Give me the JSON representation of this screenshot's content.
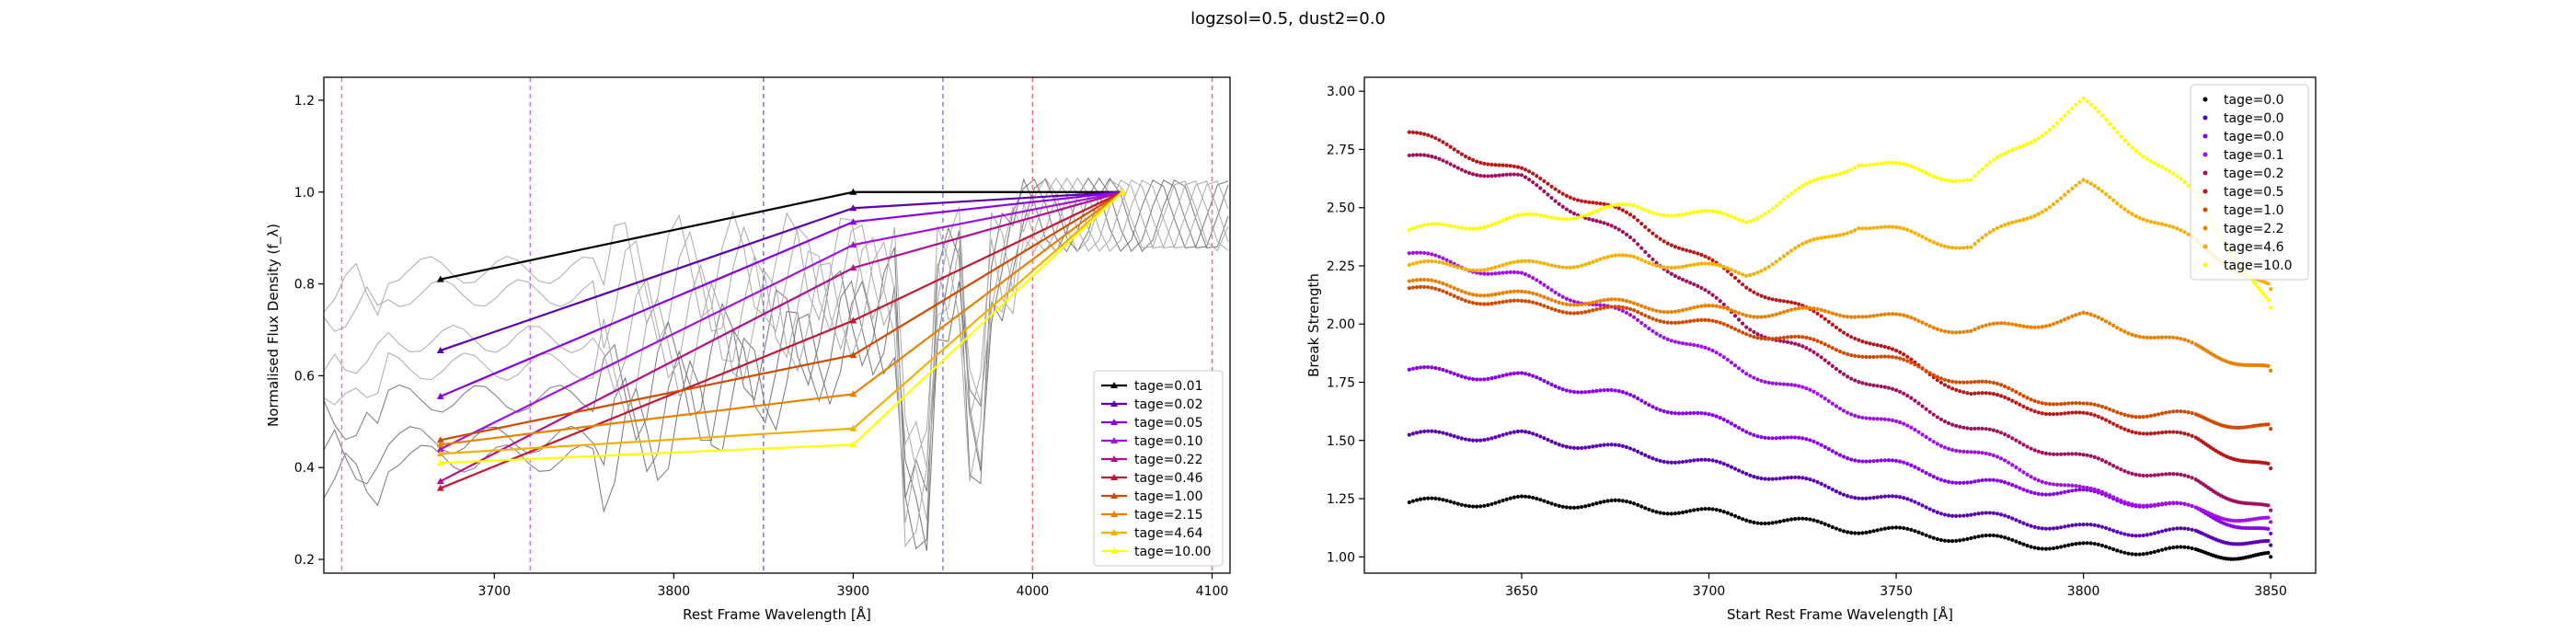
{
  "suptitle": "logzsol=0.5, dust2=0.0",
  "chart_data": [
    {
      "type": "line",
      "xlabel": "Rest Frame Wavelength [Å]",
      "ylabel": "Normalised Flux Density (f_λ)",
      "xlim": [
        3605,
        4110
      ],
      "ylim": [
        0.17,
        1.25
      ],
      "xticks": [
        3700,
        3800,
        3900,
        4000,
        4100
      ],
      "yticks": [
        0.2,
        0.4,
        0.6,
        0.8,
        1.0,
        1.2
      ],
      "legend": "lower-right",
      "vlines": [
        {
          "x": 3615,
          "color": "#e07ad0"
        },
        {
          "x": 3720,
          "color": "#c879e6"
        },
        {
          "x": 3850,
          "color": "#6b74e8"
        },
        {
          "x": 3950,
          "color": "#7d86e8"
        },
        {
          "x": 4000,
          "color": "#f07070"
        },
        {
          "x": 4100,
          "color": "#f07070"
        }
      ],
      "series": [
        {
          "name": "tage=0.01",
          "color": "#000000",
          "x": [
            3670,
            3900,
            4050
          ],
          "y": [
            0.81,
            1.0,
            1.0
          ]
        },
        {
          "name": "tage=0.02",
          "color": "#5a00b0",
          "x": [
            3670,
            3900,
            4050
          ],
          "y": [
            0.655,
            0.965,
            1.0
          ]
        },
        {
          "name": "tage=0.05",
          "color": "#8a00e6",
          "x": [
            3670,
            3900,
            4050
          ],
          "y": [
            0.555,
            0.935,
            1.0
          ]
        },
        {
          "name": "tage=0.10",
          "color": "#a010e0",
          "x": [
            3670,
            3900,
            4050
          ],
          "y": [
            0.44,
            0.885,
            1.0
          ]
        },
        {
          "name": "tage=0.22",
          "color": "#b01090",
          "x": [
            3670,
            3900,
            4050
          ],
          "y": [
            0.37,
            0.835,
            1.0
          ]
        },
        {
          "name": "tage=0.46",
          "color": "#c01830",
          "x": [
            3670,
            3900,
            4050
          ],
          "y": [
            0.355,
            0.72,
            1.0
          ]
        },
        {
          "name": "tage=1.00",
          "color": "#d04a00",
          "x": [
            3670,
            3900,
            4050
          ],
          "y": [
            0.46,
            0.645,
            1.0
          ]
        },
        {
          "name": "tage=2.15",
          "color": "#e88000",
          "x": [
            3670,
            3900,
            4050
          ],
          "y": [
            0.45,
            0.56,
            1.0
          ]
        },
        {
          "name": "tage=4.64",
          "color": "#f4b000",
          "x": [
            3670,
            3900,
            4050
          ],
          "y": [
            0.43,
            0.485,
            1.0
          ]
        },
        {
          "name": "tage=10.00",
          "color": "#ffff00",
          "x": [
            3670,
            3900,
            4050
          ],
          "y": [
            0.41,
            0.45,
            1.0
          ]
        }
      ]
    },
    {
      "type": "scatter",
      "xlabel": "Start Rest Frame Wavelength [Å]",
      "ylabel": "Break Strength",
      "xlim": [
        3608,
        3862
      ],
      "ylim": [
        0.93,
        3.06
      ],
      "xticks": [
        3650,
        3700,
        3750,
        3800,
        3850
      ],
      "yticks": [
        1.0,
        1.25,
        1.5,
        1.75,
        2.0,
        2.25,
        2.5,
        2.75,
        3.0
      ],
      "legend": "top-right",
      "series": [
        {
          "name": "tage=0.0",
          "color": "#000000",
          "x": [
            3620,
            3650,
            3680,
            3710,
            3740,
            3770,
            3800,
            3830,
            3850
          ],
          "y": [
            1.23,
            1.24,
            1.22,
            1.17,
            1.12,
            1.08,
            1.04,
            1.02,
            1.0
          ]
        },
        {
          "name": "tage=0.0",
          "color": "#5a00b0",
          "x": [
            3620,
            3650,
            3680,
            3710,
            3740,
            3770,
            3800,
            3830,
            3850
          ],
          "y": [
            1.52,
            1.52,
            1.45,
            1.37,
            1.27,
            1.18,
            1.12,
            1.1,
            1.05
          ]
        },
        {
          "name": "tage=0.0",
          "color": "#8a00e6",
          "x": [
            3620,
            3650,
            3680,
            3710,
            3740,
            3770,
            3800,
            3830,
            3850
          ],
          "y": [
            1.8,
            1.77,
            1.68,
            1.55,
            1.43,
            1.32,
            1.27,
            1.2,
            1.1
          ]
        },
        {
          "name": "tage=0.1",
          "color": "#a010e0",
          "x": [
            3620,
            3650,
            3680,
            3710,
            3740,
            3770,
            3800,
            3830,
            3850
          ],
          "y": [
            2.3,
            2.2,
            2.02,
            1.8,
            1.62,
            1.45,
            1.28,
            1.2,
            1.15
          ]
        },
        {
          "name": "tage=0.2",
          "color": "#a01060",
          "x": [
            3620,
            3650,
            3680,
            3710,
            3740,
            3770,
            3800,
            3830,
            3850
          ],
          "y": [
            2.72,
            2.62,
            2.35,
            2.0,
            1.77,
            1.55,
            1.42,
            1.32,
            1.2
          ]
        },
        {
          "name": "tage=0.5",
          "color": "#b81818",
          "x": [
            3620,
            3650,
            3680,
            3710,
            3740,
            3770,
            3800,
            3830,
            3850
          ],
          "y": [
            2.82,
            2.65,
            2.45,
            2.17,
            1.95,
            1.7,
            1.6,
            1.5,
            1.38
          ]
        },
        {
          "name": "tage=1.0",
          "color": "#d04a00",
          "x": [
            3620,
            3650,
            3680,
            3710,
            3740,
            3770,
            3800,
            3830,
            3850
          ],
          "y": [
            2.15,
            2.08,
            2.05,
            1.97,
            1.88,
            1.75,
            1.64,
            1.6,
            1.55
          ]
        },
        {
          "name": "tage=2.2",
          "color": "#e88000",
          "x": [
            3620,
            3650,
            3680,
            3710,
            3740,
            3770,
            3800,
            3830,
            3850
          ],
          "y": [
            2.18,
            2.12,
            2.08,
            2.05,
            2.05,
            1.97,
            2.03,
            1.9,
            1.8
          ]
        },
        {
          "name": "tage=4.6",
          "color": "#f4b000",
          "x": [
            3620,
            3650,
            3680,
            3710,
            3740,
            3770,
            3800,
            3830,
            3850
          ],
          "y": [
            2.25,
            2.25,
            2.28,
            2.22,
            2.43,
            2.33,
            2.6,
            2.35,
            2.15
          ]
        },
        {
          "name": "tage=10.0",
          "color": "#ffff00",
          "x": [
            3620,
            3650,
            3680,
            3710,
            3740,
            3770,
            3800,
            3830,
            3850
          ],
          "y": [
            2.4,
            2.45,
            2.5,
            2.45,
            2.7,
            2.62,
            2.95,
            2.55,
            2.07
          ]
        }
      ]
    }
  ]
}
